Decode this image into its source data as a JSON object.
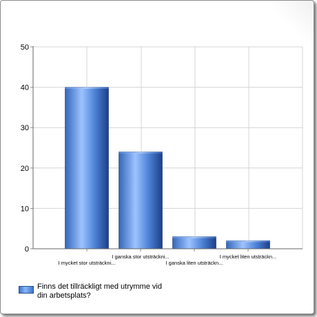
{
  "chart_data": {
    "type": "bar",
    "categories": [
      "I mycket stor utsträckni...",
      "I ganska stor utsträckni...",
      "I ganska liten utsträckn...",
      "I mycket liten utsträckn..."
    ],
    "series": [
      {
        "name": "Finns det tillräckligt med utrymme vid din arbetsplats?",
        "values": [
          40,
          24,
          3,
          2
        ]
      }
    ],
    "yticks": [
      0,
      10,
      20,
      30,
      40,
      50
    ],
    "ylim": [
      0,
      50
    ],
    "grid": true,
    "legend": "bottom-left",
    "bar_color": "#4f86d9"
  }
}
